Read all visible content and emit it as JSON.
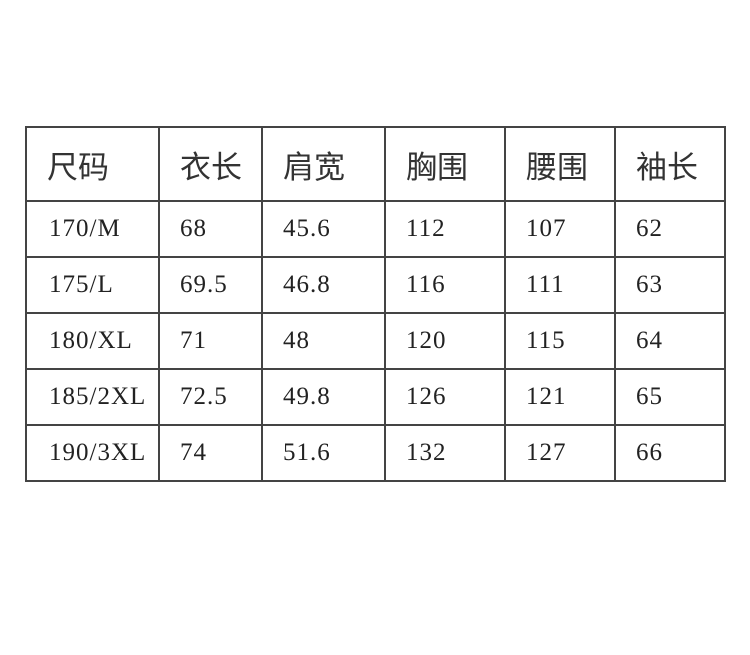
{
  "headers": [
    "尺码",
    "衣长",
    "肩宽",
    "胸围",
    "腰围",
    "袖长"
  ],
  "rows": [
    [
      "170/M",
      "68",
      "45.6",
      "112",
      "107",
      "62"
    ],
    [
      "175/L",
      "69.5",
      "46.8",
      "116",
      "111",
      "63"
    ],
    [
      "180/XL",
      "71",
      "48",
      "120",
      "115",
      "64"
    ],
    [
      "185/2XL",
      "72.5",
      "49.8",
      "126",
      "121",
      "65"
    ],
    [
      "190/3XL",
      "74",
      "51.6",
      "132",
      "127",
      "66"
    ]
  ]
}
